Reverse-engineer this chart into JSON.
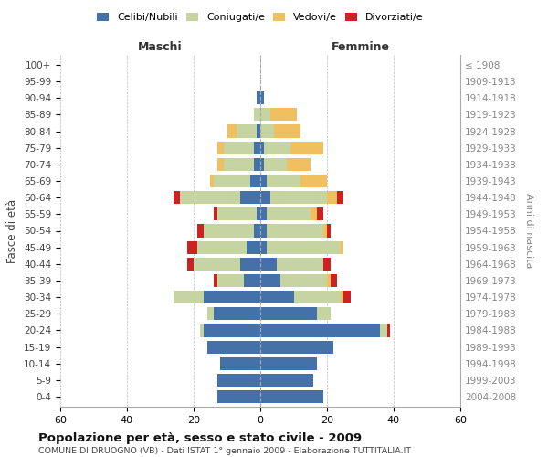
{
  "age_groups": [
    "0-4",
    "5-9",
    "10-14",
    "15-19",
    "20-24",
    "25-29",
    "30-34",
    "35-39",
    "40-44",
    "45-49",
    "50-54",
    "55-59",
    "60-64",
    "65-69",
    "70-74",
    "75-79",
    "80-84",
    "85-89",
    "90-94",
    "95-99",
    "100+"
  ],
  "birth_years": [
    "2004-2008",
    "1999-2003",
    "1994-1998",
    "1989-1993",
    "1984-1988",
    "1979-1983",
    "1974-1978",
    "1969-1973",
    "1964-1968",
    "1959-1963",
    "1954-1958",
    "1949-1953",
    "1944-1948",
    "1939-1943",
    "1934-1938",
    "1929-1933",
    "1924-1928",
    "1919-1923",
    "1914-1918",
    "1909-1913",
    "≤ 1908"
  ],
  "colors": {
    "celibe": "#4472a8",
    "coniugato": "#c5d4a0",
    "vedovo": "#f0c060",
    "divorziato": "#cc2222"
  },
  "maschi": {
    "celibe": [
      13,
      13,
      12,
      16,
      17,
      14,
      17,
      5,
      6,
      4,
      2,
      1,
      6,
      3,
      2,
      2,
      1,
      0,
      1,
      0,
      0
    ],
    "coniugato": [
      0,
      0,
      0,
      0,
      1,
      2,
      9,
      8,
      14,
      15,
      15,
      12,
      18,
      11,
      9,
      9,
      6,
      2,
      0,
      0,
      0
    ],
    "vedovo": [
      0,
      0,
      0,
      0,
      0,
      0,
      0,
      0,
      0,
      0,
      0,
      0,
      0,
      1,
      2,
      2,
      3,
      0,
      0,
      0,
      0
    ],
    "divorziato": [
      0,
      0,
      0,
      0,
      0,
      0,
      0,
      1,
      2,
      3,
      2,
      1,
      2,
      0,
      0,
      0,
      0,
      0,
      0,
      0,
      0
    ]
  },
  "femmine": {
    "nubile": [
      19,
      16,
      17,
      22,
      36,
      17,
      10,
      6,
      5,
      2,
      2,
      2,
      3,
      2,
      1,
      1,
      0,
      0,
      1,
      0,
      0
    ],
    "coniugata": [
      0,
      0,
      0,
      0,
      2,
      4,
      14,
      14,
      14,
      22,
      17,
      13,
      17,
      10,
      7,
      8,
      4,
      3,
      0,
      0,
      0
    ],
    "vedova": [
      0,
      0,
      0,
      0,
      0,
      0,
      1,
      1,
      0,
      1,
      1,
      2,
      3,
      8,
      7,
      10,
      8,
      8,
      0,
      0,
      0
    ],
    "divorziata": [
      0,
      0,
      0,
      0,
      1,
      0,
      2,
      2,
      2,
      0,
      1,
      2,
      2,
      0,
      0,
      0,
      0,
      0,
      0,
      0,
      0
    ]
  },
  "xlim": 60,
  "title": "Popolazione per età, sesso e stato civile - 2009",
  "subtitle": "COMUNE DI DRUOGNO (VB) - Dati ISTAT 1° gennaio 2009 - Elaborazione TUTTITALIA.IT",
  "ylabel_left": "Fasce di età",
  "ylabel_right": "Anni di nascita",
  "header_left": "Maschi",
  "header_right": "Femmine"
}
